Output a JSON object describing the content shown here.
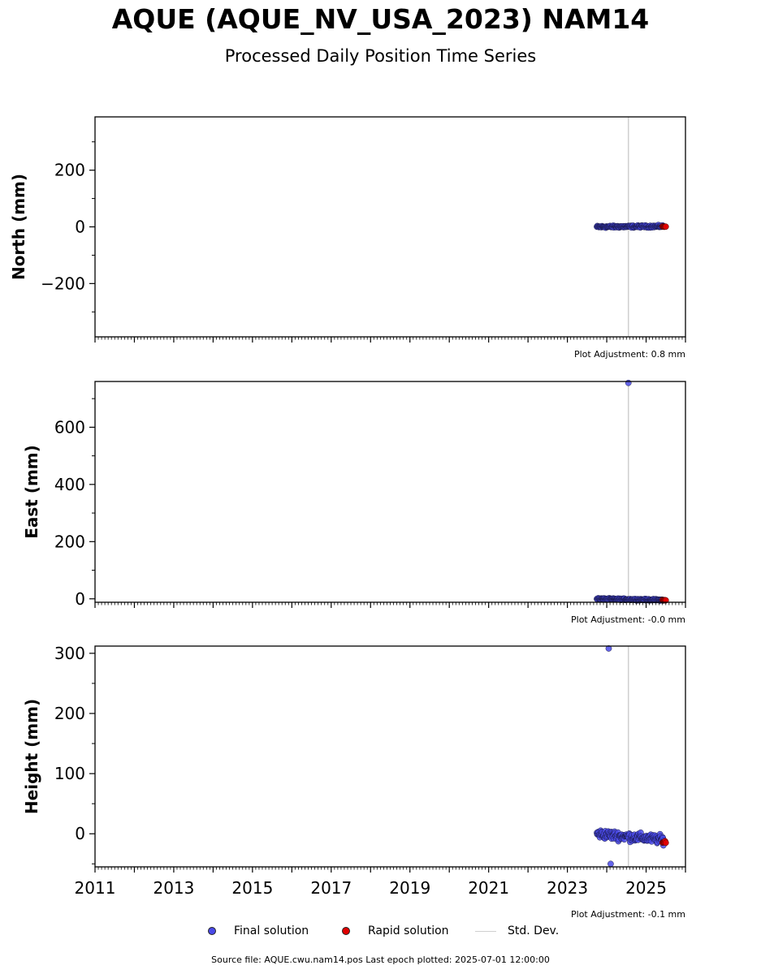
{
  "title": "AQUE (AQUE_NV_USA_2023) NAM14",
  "subtitle": "Processed Daily Position Time Series",
  "legend": {
    "final": "Final solution",
    "rapid": "Rapid solution",
    "std": "Std. Dev."
  },
  "footer": "Source file: AQUE.cwu.nam14.pos  Last epoch plotted: 2025-07-01 12:00:00",
  "colors": {
    "final": "#4a4ae8",
    "rapid": "#e00000",
    "std": "#d0d0d0",
    "edge": "#1a1a4a"
  },
  "chart_data": [
    {
      "type": "scatter",
      "ylabel": "North (mm)",
      "adjustment": "Plot Adjustment: 0.8 mm",
      "xlim": [
        2011,
        2026
      ],
      "ylim": [
        -388,
        388
      ],
      "yticks": [
        -200,
        0,
        200
      ],
      "ytick_labels": [
        "−200",
        "0",
        "200"
      ],
      "std_line_x": 2024.55,
      "final": {
        "x_start": 2023.75,
        "x_end": 2025.45,
        "y_base": 0,
        "y_trend": 2,
        "y_noise": 3,
        "outliers": []
      },
      "rapid": {
        "x_start": 2025.42,
        "x_end": 2025.5,
        "y_base": 1,
        "y_noise": 1
      },
      "show_xlabels": false
    },
    {
      "type": "scatter",
      "ylabel": "East (mm)",
      "adjustment": "Plot Adjustment: -0.0 mm",
      "xlim": [
        2011,
        2026
      ],
      "ylim": [
        -12,
        760
      ],
      "yticks": [
        0,
        200,
        400,
        600
      ],
      "ytick_labels": [
        "0",
        "200",
        "400",
        "600"
      ],
      "std_line_x": 2024.55,
      "final": {
        "x_start": 2023.75,
        "x_end": 2025.45,
        "y_base": 0,
        "y_trend": -4,
        "y_noise": 2,
        "outliers": [
          [
            2024.55,
            755
          ]
        ]
      },
      "rapid": {
        "x_start": 2025.42,
        "x_end": 2025.5,
        "y_base": -5,
        "y_noise": 1
      },
      "show_xlabels": false
    },
    {
      "type": "scatter",
      "ylabel": "Height (mm)",
      "adjustment": "Plot Adjustment: -0.1 mm",
      "xlim": [
        2011,
        2026
      ],
      "ylim": [
        -55,
        312
      ],
      "yticks": [
        0,
        100,
        200,
        300
      ],
      "ytick_labels": [
        "0",
        "100",
        "200",
        "300"
      ],
      "xticks": [
        2011,
        2013,
        2015,
        2017,
        2019,
        2021,
        2023,
        2025
      ],
      "xtick_labels": [
        "2011",
        "2013",
        "2015",
        "2017",
        "2019",
        "2021",
        "2023",
        "2025"
      ],
      "std_line_x": 2024.55,
      "final": {
        "x_start": 2023.75,
        "x_end": 2025.45,
        "y_base": 0,
        "y_trend": -10,
        "y_noise": 6,
        "outliers": [
          [
            2024.05,
            308
          ],
          [
            2024.1,
            -50
          ]
        ]
      },
      "rapid": {
        "x_start": 2025.42,
        "x_end": 2025.5,
        "y_base": -14,
        "y_noise": 2
      },
      "show_xlabels": true
    }
  ]
}
